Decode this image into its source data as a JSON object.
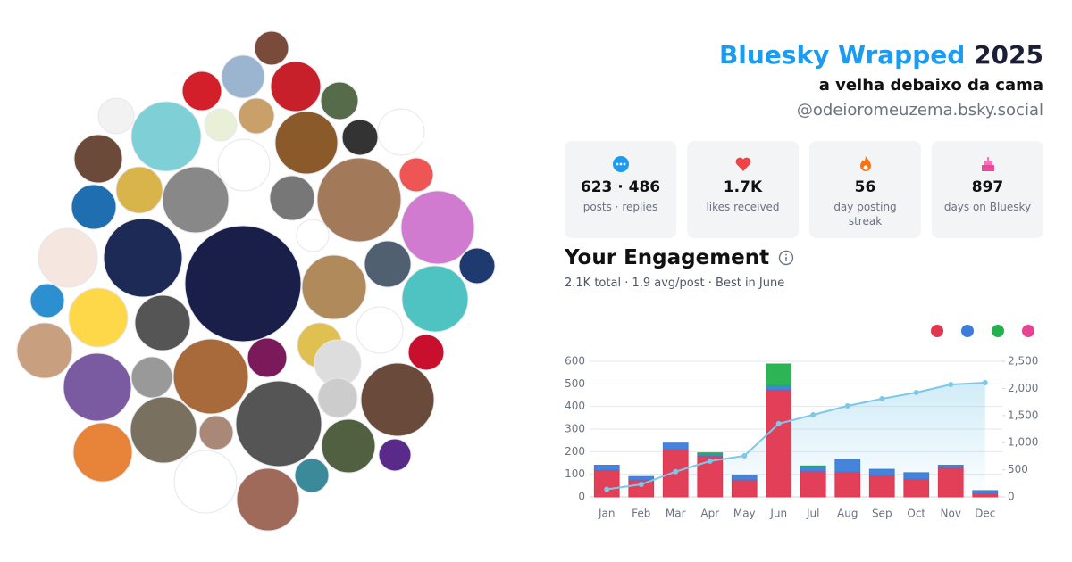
{
  "header": {
    "title": "Bluesky Wrapped",
    "year": "2025",
    "name": "a velha debaixo da cama",
    "handle": "@odeioromeuzema.bsky.social"
  },
  "stats": [
    {
      "value": "623 · 486",
      "label": "posts · replies"
    },
    {
      "value": "1.7K",
      "label": "likes received"
    },
    {
      "value": "56",
      "label": "day posting streak"
    },
    {
      "value": "897",
      "label": "days on Bluesky"
    }
  ],
  "engagement": {
    "title": "Your Engagement",
    "summary": "2.1K total · 1.9 avg/post · Best in June"
  },
  "chart_data": {
    "type": "bar",
    "stacked": true,
    "grid": true,
    "categories": [
      "Jan",
      "Feb",
      "Mar",
      "Apr",
      "May",
      "Jun",
      "Jul",
      "Aug",
      "Sep",
      "Oct",
      "Nov",
      "Dec"
    ],
    "series": [
      {
        "color": "#e0364f",
        "values": [
          118,
          75,
          210,
          180,
          75,
          474,
          114,
          110,
          95,
          79,
          130,
          16
        ]
      },
      {
        "color": "#3b7dd8",
        "values": [
          22,
          15,
          28,
          10,
          20,
          19,
          20,
          56,
          27,
          28,
          10,
          12
        ]
      },
      {
        "color": "#22b14c",
        "values": [
          0,
          0,
          0,
          5,
          0,
          95,
          3,
          0,
          0,
          0,
          0,
          0
        ]
      },
      {
        "color": "#e84393",
        "values": [
          0,
          0,
          0,
          0,
          0,
          0,
          0,
          0,
          0,
          0,
          0,
          0
        ]
      },
      {
        "type": "line",
        "axis": "y2",
        "color": "#7cc8ea",
        "values": [
          140,
          230,
          465,
          660,
          757,
          1350,
          1513,
          1678,
          1809,
          1924,
          2072,
          2105
        ]
      }
    ],
    "ylim": [
      0,
      600
    ],
    "yticks": [
      0,
      100,
      200,
      300,
      400,
      500,
      600
    ],
    "y2lim": [
      0,
      2500
    ],
    "y2ticks": [
      0,
      500,
      {
        "value": 1000,
        "label": "1,000"
      },
      {
        "value": 1500,
        "label": "1,500"
      },
      {
        "value": 2000,
        "label": "2,000"
      },
      {
        "value": 2500,
        "label": "2,500"
      }
    ]
  }
}
